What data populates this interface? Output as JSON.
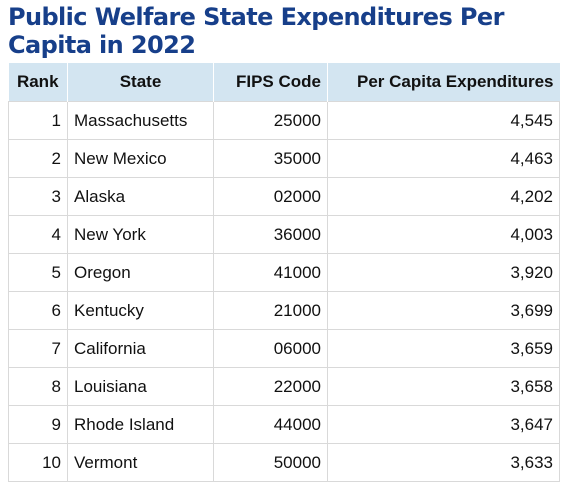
{
  "chart_data": {
    "type": "table",
    "title": "Public Welfare State Expenditures Per Capita in 2022",
    "columns": [
      "Rank",
      "State",
      "FIPS Code",
      "Per Capita Expenditures"
    ],
    "rows": [
      {
        "rank": "1",
        "state": "Massachusetts",
        "fips": "25000",
        "per_capita": "4,545"
      },
      {
        "rank": "2",
        "state": "New Mexico",
        "fips": "35000",
        "per_capita": "4,463"
      },
      {
        "rank": "3",
        "state": "Alaska",
        "fips": "02000",
        "per_capita": "4,202"
      },
      {
        "rank": "4",
        "state": "New York",
        "fips": "36000",
        "per_capita": "4,003"
      },
      {
        "rank": "5",
        "state": "Oregon",
        "fips": "41000",
        "per_capita": "3,920"
      },
      {
        "rank": "6",
        "state": "Kentucky",
        "fips": "21000",
        "per_capita": "3,699"
      },
      {
        "rank": "7",
        "state": "California",
        "fips": "06000",
        "per_capita": "3,659"
      },
      {
        "rank": "8",
        "state": "Louisiana",
        "fips": "22000",
        "per_capita": "3,658"
      },
      {
        "rank": "9",
        "state": "Rhode Island",
        "fips": "44000",
        "per_capita": "3,647"
      },
      {
        "rank": "10",
        "state": "Vermont",
        "fips": "50000",
        "per_capita": "3,633"
      }
    ],
    "colors": {
      "title": "#173f8a",
      "header_background": "#d3e5f1",
      "grid": "#d9d9d9"
    }
  }
}
